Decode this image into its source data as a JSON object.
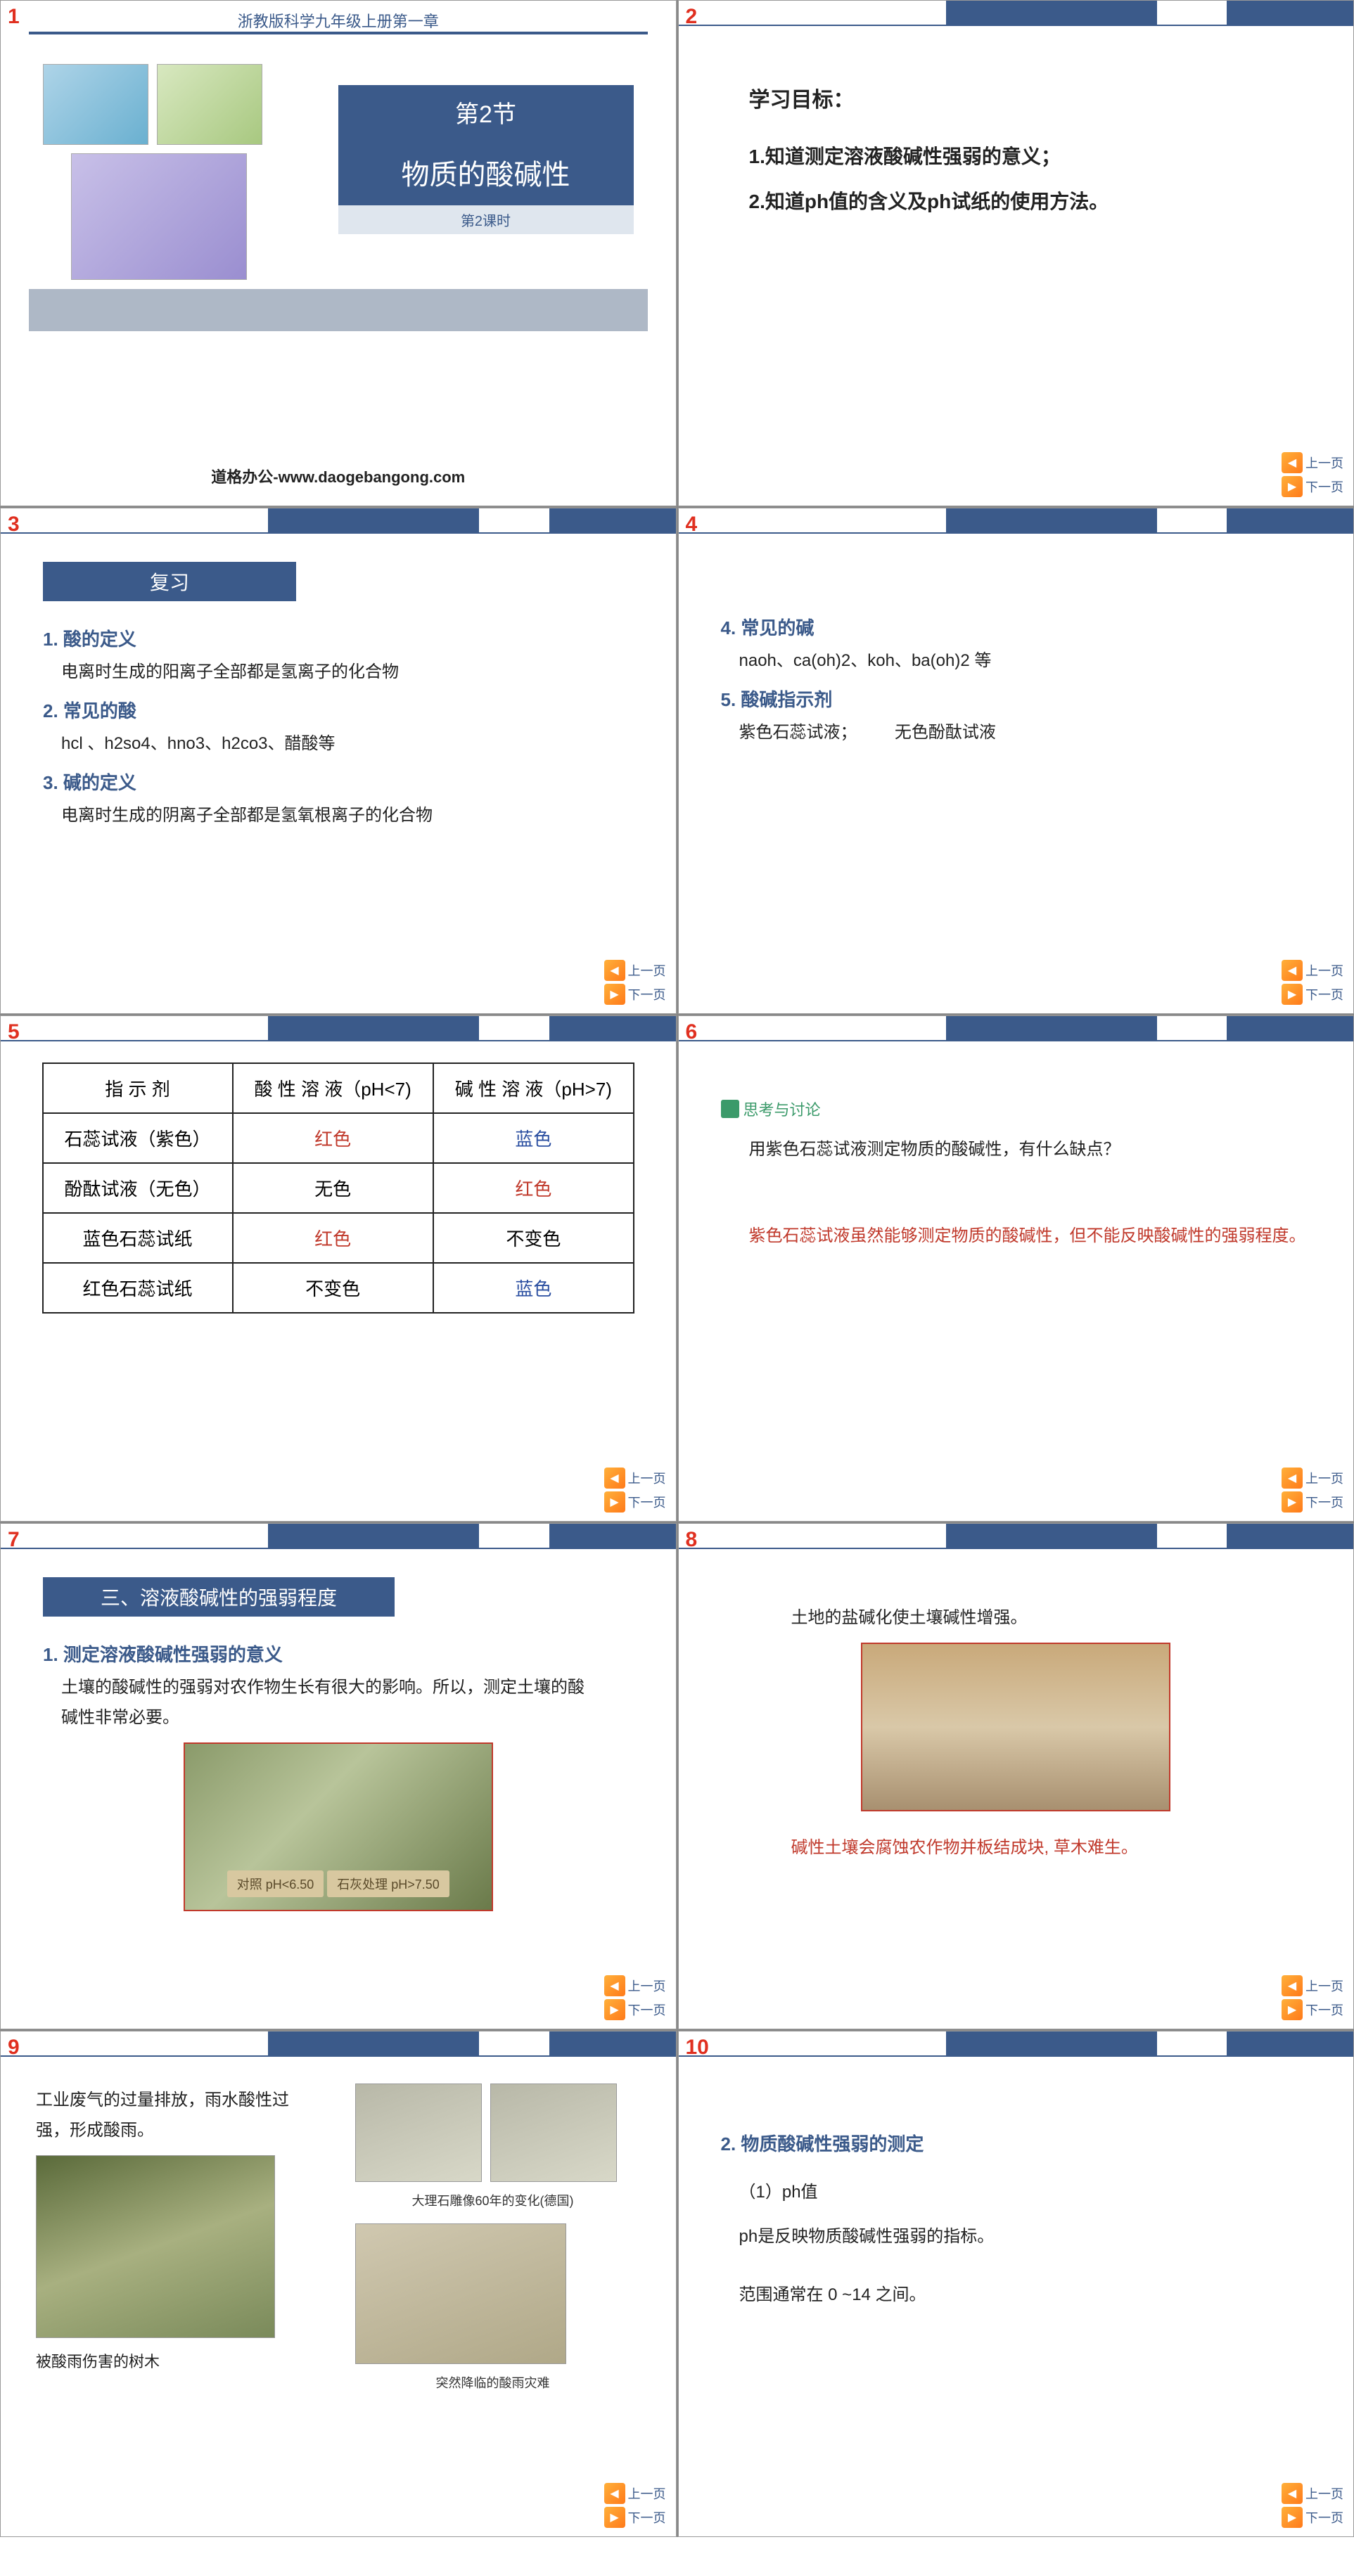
{
  "colors": {
    "primary": "#3b5a8a",
    "accent_red": "#c0392b",
    "accent_blue": "#2a4ea0",
    "bg": "#ffffff",
    "light_panel": "#e8edf3",
    "slide_num": "#e03020"
  },
  "nav": {
    "prev": "上一页",
    "next": "下一页"
  },
  "slide1": {
    "num": "1",
    "header": "浙教版科学九年级上册第一章",
    "section_no": "第2节",
    "title": "物质的酸碱性",
    "sub": "第2课时",
    "brand": "道格办公-www.daogebangong.com"
  },
  "slide2": {
    "num": "2",
    "heading": "学习目标：",
    "item1": "1.知道测定溶液酸碱性强弱的意义；",
    "item2": "2.知道ph值的含义及ph试纸的使用方法。"
  },
  "slide3": {
    "num": "3",
    "banner": "复习",
    "p1_h": "1. 酸的定义",
    "p1_t": "电离时生成的阳离子全部都是氢离子的化合物",
    "p2_h": "2. 常见的酸",
    "p2_t": "hcl 、h2so4、hno3、h2co3、醋酸等",
    "p3_h": "3. 碱的定义",
    "p3_t": "电离时生成的阴离子全部都是氢氧根离子的化合物"
  },
  "slide4": {
    "num": "4",
    "p4_h": "4. 常见的碱",
    "p4_t": "naoh、ca(oh)2、koh、ba(oh)2 等",
    "p5_h": "5. 酸碱指示剂",
    "p5_t1": "紫色石蕊试液；",
    "p5_t2": "无色酚酞试液"
  },
  "slide5": {
    "num": "5",
    "table": {
      "columns": [
        "指 示 剂",
        "酸 性 溶 液（pH<7)",
        "碱 性 溶 液（pH>7)"
      ],
      "rows": [
        {
          "name": "石蕊试液（紫色）",
          "acid": "红色",
          "acid_cls": "cell-red",
          "base": "蓝色",
          "base_cls": "cell-blue"
        },
        {
          "name": "酚酞试液（无色）",
          "acid": "无色",
          "acid_cls": "",
          "base": "红色",
          "base_cls": "cell-red"
        },
        {
          "name": "蓝色石蕊试纸",
          "acid": "红色",
          "acid_cls": "cell-red",
          "base": "不变色",
          "base_cls": ""
        },
        {
          "name": "红色石蕊试纸",
          "acid": "不变色",
          "acid_cls": "",
          "base": "蓝色",
          "base_cls": "cell-blue"
        }
      ]
    }
  },
  "slide6": {
    "num": "6",
    "think_label": "思考与讨论",
    "q": "用紫色石蕊试液测定物质的酸碱性，有什么缺点？",
    "a": "紫色石蕊试液虽然能够测定物质的酸碱性，但不能反映酸碱性的强弱程度。"
  },
  "slide7": {
    "num": "7",
    "banner": "三、溶液酸碱性的强弱程度",
    "h1": "1. 测定溶液酸碱性强弱的意义",
    "t1": "土壤的酸碱性的强弱对农作物生长有很大的影响。所以，测定土壤的酸碱性非常必要。",
    "label_left": "对照  pH<6.50",
    "label_right": "石灰处理  pH>7.50"
  },
  "slide8": {
    "num": "8",
    "t1": "土地的盐碱化使土壤碱性增强。",
    "t2": "碱性土壤会腐蚀农作物并板结成块, 草木难生。"
  },
  "slide9": {
    "num": "9",
    "left_t": "工业废气的过量排放，雨水酸性过强，形成酸雨。",
    "left_cap": "被酸雨伤害的树木",
    "right_cap1": "大理石雕像60年的变化(德国)",
    "right_cap2": "突然降临的酸雨灾难"
  },
  "slide10": {
    "num": "10",
    "h": "2. 物质酸碱性强弱的测定",
    "t1": "（1）ph值",
    "t2": "ph是反映物质酸碱性强弱的指标。",
    "t3": "范围通常在 0 ~14 之间。"
  }
}
